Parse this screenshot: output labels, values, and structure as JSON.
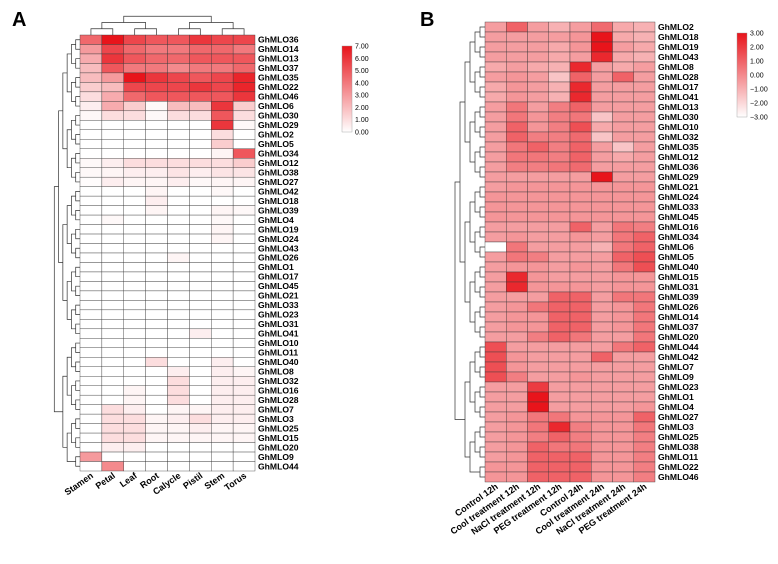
{
  "chart_data": [
    {
      "type": "heatmap",
      "panel_label": "A",
      "title": "",
      "xlabel": "",
      "ylabel": "",
      "columns": [
        "Stamen",
        "Petal",
        "Leaf",
        "Root",
        "Calycle",
        "Pistil",
        "Stem",
        "Torus"
      ],
      "rows": [
        "GhMLO36",
        "GhMLO14",
        "GhMLO13",
        "GhMLO37",
        "GhMLO35",
        "GhMLO22",
        "GhMLO46",
        "GhMLO6",
        "GhMLO30",
        "GhMLO29",
        "GhMLO2",
        "GhMLO5",
        "GhMLO34",
        "GhMLO12",
        "GhMLO38",
        "GhMLO27",
        "GhMLO42",
        "GhMLO18",
        "GhMLO39",
        "GhMLO4",
        "GhMLO19",
        "GhMLO24",
        "GhMLO43",
        "GhMLO26",
        "GhMLO1",
        "GhMLO17",
        "GhMLO45",
        "GhMLO21",
        "GhMLO33",
        "GhMLO23",
        "GhMLO31",
        "GhMLO41",
        "GhMLO10",
        "GhMLO11",
        "GhMLO40",
        "GhMLO8",
        "GhMLO32",
        "GhMLO16",
        "GhMLO28",
        "GhMLO7",
        "GhMLO3",
        "GhMLO25",
        "GhMLO15",
        "GhMLO20",
        "GhMLO9",
        "GhMLO44"
      ],
      "values": [
        [
          4.5,
          7.0,
          5.5,
          5.0,
          5.0,
          6.0,
          5.5,
          5.5
        ],
        [
          3.0,
          5.5,
          4.5,
          4.0,
          4.0,
          4.5,
          4.5,
          4.0
        ],
        [
          2.5,
          6.0,
          5.0,
          4.5,
          4.5,
          5.0,
          5.0,
          5.0
        ],
        [
          2.0,
          5.0,
          4.0,
          4.0,
          3.5,
          4.0,
          4.0,
          4.5
        ],
        [
          2.0,
          3.0,
          7.0,
          6.0,
          5.5,
          5.0,
          5.5,
          6.5
        ],
        [
          1.5,
          2.0,
          5.5,
          5.5,
          5.5,
          6.0,
          5.5,
          6.5
        ],
        [
          1.0,
          2.5,
          4.5,
          5.0,
          5.0,
          5.0,
          5.0,
          6.0
        ],
        [
          0.5,
          2.5,
          1.5,
          0.2,
          2.0,
          2.0,
          6.0,
          1.5
        ],
        [
          0.2,
          1.0,
          1.0,
          0.2,
          1.0,
          1.0,
          5.0,
          1.0
        ],
        [
          0,
          0,
          0,
          0,
          0,
          0,
          6.0,
          0.2
        ],
        [
          0,
          0,
          0,
          0,
          0,
          0,
          1.0,
          0
        ],
        [
          0,
          0,
          0,
          0,
          0,
          0,
          1.5,
          0
        ],
        [
          0,
          0,
          0,
          0,
          0,
          0,
          0.3,
          5.0
        ],
        [
          0.2,
          0.5,
          1.0,
          1.0,
          1.0,
          1.0,
          1.0,
          1.5
        ],
        [
          0.2,
          0.3,
          0.5,
          0.5,
          0.8,
          0.5,
          0.8,
          0.8
        ],
        [
          0.1,
          0.5,
          0.3,
          0.3,
          0.5,
          0.2,
          0.3,
          0.3
        ],
        [
          0,
          0,
          0,
          0.3,
          0,
          0,
          0.2,
          0
        ],
        [
          0,
          0,
          0,
          0.5,
          0,
          0,
          0,
          0
        ],
        [
          0,
          0,
          0,
          0.3,
          0,
          0,
          0.3,
          0.2
        ],
        [
          0,
          0.2,
          0,
          0,
          0,
          0,
          0.2,
          0
        ],
        [
          0,
          0,
          0,
          0,
          0,
          0,
          0.3,
          0
        ],
        [
          0,
          0,
          0,
          0,
          0,
          0,
          0.3,
          0
        ],
        [
          0,
          0,
          0,
          0,
          0,
          0,
          0,
          0
        ],
        [
          0,
          0,
          0,
          0,
          0.3,
          0,
          0,
          0
        ],
        [
          0,
          0,
          0,
          0,
          0,
          0,
          0,
          0
        ],
        [
          0,
          0,
          0,
          0,
          0,
          0,
          0,
          0
        ],
        [
          0,
          0,
          0,
          0,
          0,
          0,
          0,
          0
        ],
        [
          0,
          0,
          0,
          0,
          0,
          0,
          0,
          0
        ],
        [
          0,
          0,
          0,
          0,
          0,
          0,
          0,
          0
        ],
        [
          0,
          0,
          0,
          0,
          0,
          0,
          0,
          0
        ],
        [
          0,
          0,
          0,
          0,
          0,
          0,
          0,
          0
        ],
        [
          0,
          0,
          0,
          0,
          0,
          0.5,
          0,
          0
        ],
        [
          0,
          0,
          0,
          0,
          0,
          0,
          0,
          0
        ],
        [
          0,
          0,
          0,
          0,
          0,
          0,
          0,
          0
        ],
        [
          0,
          0,
          0,
          1.0,
          0,
          0,
          0.5,
          0
        ],
        [
          0,
          0,
          0,
          0,
          0.5,
          0,
          0.5,
          0.3
        ],
        [
          0,
          0,
          0,
          0,
          1.0,
          0,
          0.5,
          0.5
        ],
        [
          0,
          0,
          0.3,
          0,
          1.0,
          0,
          0.5,
          0.5
        ],
        [
          0,
          0,
          0.3,
          0,
          1.0,
          0,
          0.5,
          0.5
        ],
        [
          0,
          1.0,
          0.5,
          0,
          0.3,
          0.3,
          0.5,
          0.5
        ],
        [
          0,
          1.0,
          1.0,
          0.3,
          0.5,
          1.0,
          0.5,
          0.5
        ],
        [
          0,
          1.0,
          1.0,
          0.3,
          0.3,
          0.5,
          0.3,
          0.3
        ],
        [
          0,
          1.0,
          1.0,
          0.3,
          0.3,
          0.3,
          0.3,
          0.3
        ],
        [
          0,
          0.5,
          0.5,
          0,
          0,
          0,
          0,
          0
        ],
        [
          3.0,
          0,
          0,
          0,
          0,
          0,
          0,
          0
        ],
        [
          0,
          3.5,
          0,
          0,
          0,
          0,
          0,
          0
        ]
      ],
      "colorbar": {
        "min": 0,
        "max": 7,
        "ticks": [
          "7.00",
          "6.00",
          "5.00",
          "4.00",
          "3.00",
          "2.00",
          "1.00",
          "0.00"
        ],
        "low_color": "#ffffff",
        "high_color": "#e8141b"
      }
    },
    {
      "type": "heatmap",
      "panel_label": "B",
      "title": "",
      "xlabel": "",
      "ylabel": "",
      "columns": [
        "Control 12h",
        "Cool treatment 12h",
        "NaCl treatment 12h",
        "PEG treatment 12h",
        "Control  24h",
        "Cool treatment 24h",
        "NaCl treatment 24h",
        "PEG treatment 24h"
      ],
      "rows": [
        "GhMLO2",
        "GhMLO18",
        "GhMLO19",
        "GhMLO43",
        "GhMLO8",
        "GhMLO28",
        "GhMLO17",
        "GhMLO41",
        "GhMLO13",
        "GhMLO30",
        "GhMLO10",
        "GhMLO32",
        "GhMLO35",
        "GhMLO12",
        "GhMLO36",
        "GhMLO29",
        "GhMLO21",
        "GhMLO24",
        "GhMLO33",
        "GhMLO45",
        "GhMLO16",
        "GhMLO34",
        "GhMLO6",
        "GhMLO5",
        "GhMLO40",
        "GhMLO15",
        "GhMLO31",
        "GhMLO39",
        "GhMLO26",
        "GhMLO14",
        "GhMLO37",
        "GhMLO20",
        "GhMLO44",
        "GhMLO42",
        "GhMLO7",
        "GhMLO9",
        "GhMLO23",
        "GhMLO1",
        "GhMLO4",
        "GhMLO27",
        "GhMLO3",
        "GhMLO25",
        "GhMLO38",
        "GhMLO11",
        "GhMLO22",
        "GhMLO46"
      ],
      "values": [
        [
          -0.5,
          1.0,
          -0.5,
          -1.0,
          -0.5,
          0.8,
          -0.8,
          -1.0
        ],
        [
          -0.5,
          -0.5,
          -0.5,
          -0.5,
          -0.3,
          3.0,
          -0.8,
          -1.0
        ],
        [
          -0.5,
          -0.5,
          -0.5,
          -0.8,
          -0.3,
          3.0,
          -0.5,
          -0.8
        ],
        [
          -0.5,
          -0.5,
          -0.5,
          -0.8,
          -0.5,
          2.5,
          -0.8,
          -1.0
        ],
        [
          -0.8,
          -0.5,
          -0.8,
          -1.0,
          2.5,
          -0.5,
          -0.8,
          -0.5
        ],
        [
          -0.5,
          -0.3,
          -0.5,
          -1.5,
          1.0,
          -0.5,
          1.0,
          -0.5
        ],
        [
          -0.8,
          -0.3,
          -0.5,
          -1.0,
          2.5,
          -0.5,
          -0.5,
          -0.5
        ],
        [
          -0.8,
          -0.3,
          -0.5,
          -1.0,
          2.5,
          -0.5,
          -0.5,
          -0.5
        ],
        [
          -0.5,
          0.5,
          -0.5,
          0.3,
          1.0,
          -0.5,
          -0.5,
          -0.5
        ],
        [
          -0.5,
          0.5,
          -0.3,
          0.3,
          0.5,
          -1.5,
          -0.5,
          -0.5
        ],
        [
          -0.5,
          1.0,
          -0.3,
          0.3,
          1.5,
          -0.8,
          -0.5,
          -0.5
        ],
        [
          -0.5,
          1.0,
          0.3,
          0.3,
          0.8,
          -1.5,
          -0.5,
          -0.5
        ],
        [
          -0.5,
          0.5,
          1.0,
          0.3,
          1.0,
          -0.5,
          -1.5,
          -0.5
        ],
        [
          -0.5,
          0.5,
          0.5,
          0.3,
          1.0,
          -0.5,
          -0.8,
          -0.5
        ],
        [
          -0.5,
          0.3,
          0.3,
          0.5,
          0.8,
          -0.5,
          -0.5,
          -0.5
        ],
        [
          -0.5,
          -0.5,
          -0.5,
          -0.5,
          -0.5,
          3.0,
          -0.5,
          -0.5
        ],
        [
          -0.5,
          -0.3,
          -0.3,
          -0.3,
          -0.3,
          -0.3,
          -0.3,
          -0.3
        ],
        [
          -0.3,
          -0.3,
          -0.3,
          -0.3,
          -0.3,
          -0.3,
          -0.3,
          -0.3
        ],
        [
          -0.3,
          -0.3,
          -0.3,
          -0.3,
          -0.3,
          -0.3,
          -0.3,
          -0.3
        ],
        [
          -0.3,
          -0.3,
          -0.3,
          -0.3,
          -0.3,
          -0.3,
          -0.3,
          -0.3
        ],
        [
          -0.5,
          -0.5,
          -0.5,
          -0.5,
          1.0,
          -0.5,
          0.5,
          0.3
        ],
        [
          -0.5,
          -0.3,
          -0.5,
          -0.5,
          -0.3,
          -0.5,
          0.5,
          1.0
        ],
        [
          -3.0,
          0.5,
          -0.5,
          -0.5,
          -0.5,
          -1.0,
          0.5,
          1.0
        ],
        [
          -0.5,
          0.5,
          0.3,
          -0.5,
          -0.5,
          -0.5,
          1.0,
          1.5
        ],
        [
          -0.5,
          -0.3,
          -0.3,
          -0.5,
          -0.3,
          -0.5,
          0.5,
          1.5
        ],
        [
          -0.5,
          2.5,
          -0.3,
          -0.5,
          -0.5,
          -0.5,
          -0.3,
          -0.3
        ],
        [
          -0.5,
          2.5,
          -0.3,
          -0.3,
          -0.3,
          -0.5,
          -0.3,
          -0.3
        ],
        [
          -0.5,
          -0.5,
          -0.5,
          1.0,
          1.0,
          -0.5,
          0.5,
          0.5
        ],
        [
          -0.5,
          -0.3,
          0.5,
          1.0,
          1.0,
          -0.5,
          -0.3,
          0.5
        ],
        [
          -0.5,
          -0.3,
          -0.3,
          1.0,
          1.0,
          -0.5,
          -0.3,
          0.5
        ],
        [
          -0.5,
          -0.3,
          -0.3,
          1.0,
          1.0,
          -0.5,
          -0.3,
          0.5
        ],
        [
          -0.5,
          -0.5,
          0.3,
          1.0,
          0.5,
          -0.5,
          -0.5,
          0.5
        ],
        [
          1.5,
          -0.5,
          -0.5,
          -0.5,
          -0.5,
          -0.5,
          0.5,
          1.0
        ],
        [
          1.5,
          -0.3,
          -0.5,
          -0.5,
          -0.5,
          1.0,
          -0.5,
          -0.5
        ],
        [
          1.5,
          -0.3,
          -0.5,
          -0.5,
          -0.5,
          -0.5,
          -0.5,
          -0.5
        ],
        [
          1.5,
          0.3,
          -0.5,
          -0.5,
          -0.3,
          -0.5,
          -0.5,
          -0.5
        ],
        [
          -0.5,
          -0.5,
          2.0,
          -0.5,
          -0.5,
          -0.5,
          -0.5,
          -0.5
        ],
        [
          -0.5,
          -0.5,
          3.0,
          -0.5,
          -0.5,
          -0.5,
          -0.5,
          -0.5
        ],
        [
          -0.5,
          -0.5,
          3.0,
          -0.5,
          -0.5,
          -0.5,
          -0.5,
          -0.3
        ],
        [
          -0.5,
          -0.3,
          0.5,
          0.5,
          -0.3,
          -0.3,
          -0.3,
          1.0
        ],
        [
          -0.5,
          -0.3,
          0.5,
          2.5,
          0.3,
          -0.3,
          -0.3,
          0.5
        ],
        [
          -0.5,
          -0.3,
          0.3,
          1.0,
          0.3,
          -0.3,
          -0.3,
          0.3
        ],
        [
          -0.5,
          -0.3,
          1.0,
          0.5,
          0.5,
          -0.3,
          -0.3,
          0.3
        ],
        [
          -0.5,
          -0.3,
          1.0,
          1.0,
          1.0,
          -0.3,
          -0.3,
          0.3
        ],
        [
          -0.3,
          -0.3,
          1.0,
          1.0,
          1.0,
          -0.3,
          -0.3,
          0.3
        ],
        [
          -0.3,
          -0.3,
          1.0,
          1.0,
          1.0,
          -0.3,
          -0.3,
          0.3
        ]
      ],
      "colorbar": {
        "min": -3,
        "max": 3,
        "ticks": [
          "3.00",
          "2.00",
          "1.00",
          "0.00",
          "−1.00",
          "−2.00",
          "−3.00"
        ],
        "low_color": "#ffffff",
        "high_color": "#e8141b"
      }
    }
  ]
}
